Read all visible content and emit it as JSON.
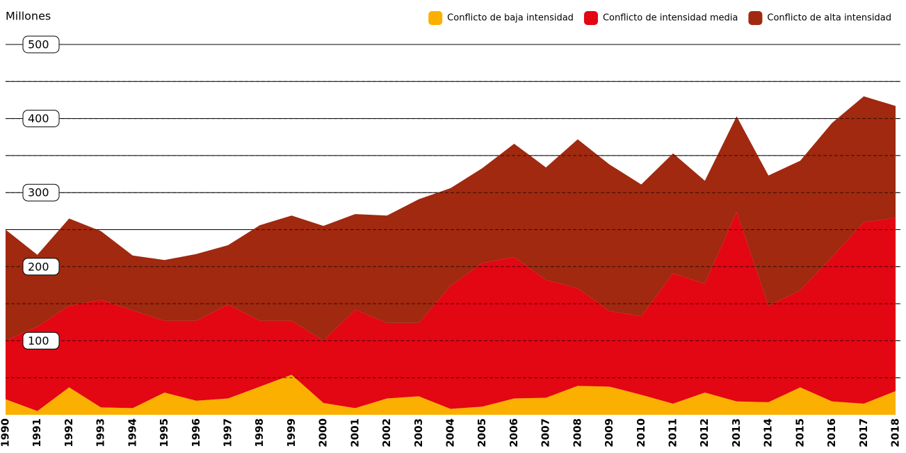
{
  "chart_data": {
    "type": "stacked_area",
    "y_label": "Millones",
    "categories": [
      "1990",
      "1991",
      "1992",
      "1993",
      "1994",
      "1995",
      "1996",
      "1997",
      "1998",
      "1999",
      "2000",
      "2001",
      "2002",
      "2003",
      "2004",
      "2005",
      "2006",
      "2007",
      "2008",
      "2009",
      "2010",
      "2011",
      "2012",
      "2013",
      "2014",
      "2015",
      "2016",
      "2017",
      "2018"
    ],
    "series": [
      {
        "name": "Conflicto de baja intensidad",
        "color": "#fbb000",
        "values": [
          21,
          5,
          37,
          10,
          9,
          30,
          19,
          22,
          38,
          54,
          16,
          9,
          22,
          25,
          8,
          11,
          22,
          23,
          39,
          38,
          27,
          15,
          30,
          18,
          17,
          37,
          18,
          15,
          32
        ]
      },
      {
        "name": "Conflicto de intensidad media",
        "color": "#e30613",
        "values": [
          79,
          114,
          110,
          145,
          132,
          97,
          108,
          127,
          89,
          73,
          84,
          133,
          102,
          99,
          166,
          194,
          191,
          159,
          132,
          102,
          106,
          176,
          147,
          256,
          130,
          131,
          195,
          245,
          234
        ]
      },
      {
        "name": "Conflicto de alta intensidad",
        "color": "#a0290f",
        "values": [
          150,
          97,
          118,
          93,
          74,
          82,
          90,
          80,
          129,
          142,
          155,
          129,
          145,
          167,
          132,
          128,
          153,
          152,
          201,
          198,
          178,
          162,
          139,
          129,
          176,
          175,
          181,
          170,
          151
        ]
      }
    ],
    "ylim": [
      0,
      500
    ],
    "yticks": [
      100,
      200,
      300,
      400,
      500
    ],
    "yticks_minor": [
      50,
      150,
      250,
      350,
      450
    ],
    "grid": true,
    "legend": "top-right"
  }
}
